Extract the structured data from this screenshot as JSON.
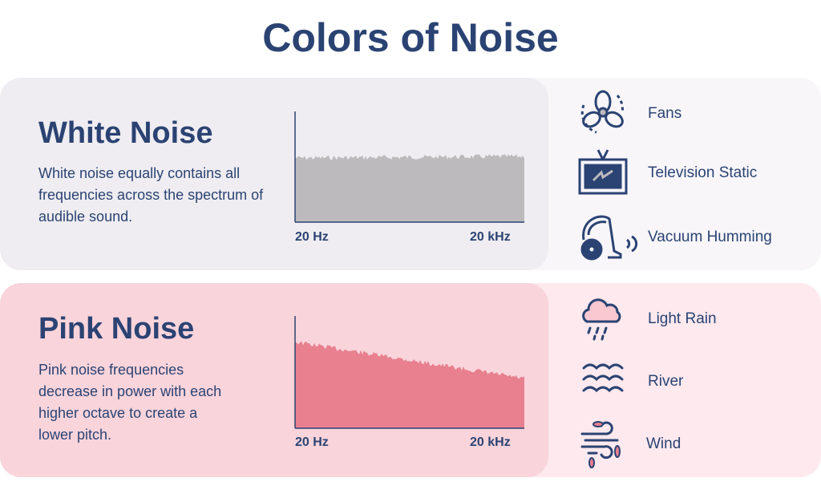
{
  "title": "Colors of Noise",
  "colors": {
    "navy": "#2b4373",
    "white_fill": "#bcbabd",
    "pink_fill": "#e8808f"
  },
  "white": {
    "title": "White Noise",
    "desc": "White noise equally contains all frequencies across the spectrum of audible sound.",
    "x_start": "20 Hz",
    "x_end": "20 kHz",
    "examples": [
      {
        "label": "Fans",
        "icon": "fan-icon"
      },
      {
        "label": "Television Static",
        "icon": "tv-icon"
      },
      {
        "label": "Vacuum Humming",
        "icon": "vacuum-icon"
      }
    ]
  },
  "pink": {
    "title": "Pink Noise",
    "desc": "Pink noise frequencies decrease in power with each higher octave to create a lower pitch.",
    "x_start": "20 Hz",
    "x_end": "20 kHz",
    "examples": [
      {
        "label": "Light Rain",
        "icon": "rain-cloud-icon"
      },
      {
        "label": "River",
        "icon": "waves-icon"
      },
      {
        "label": "Wind",
        "icon": "wind-icon"
      }
    ]
  }
}
